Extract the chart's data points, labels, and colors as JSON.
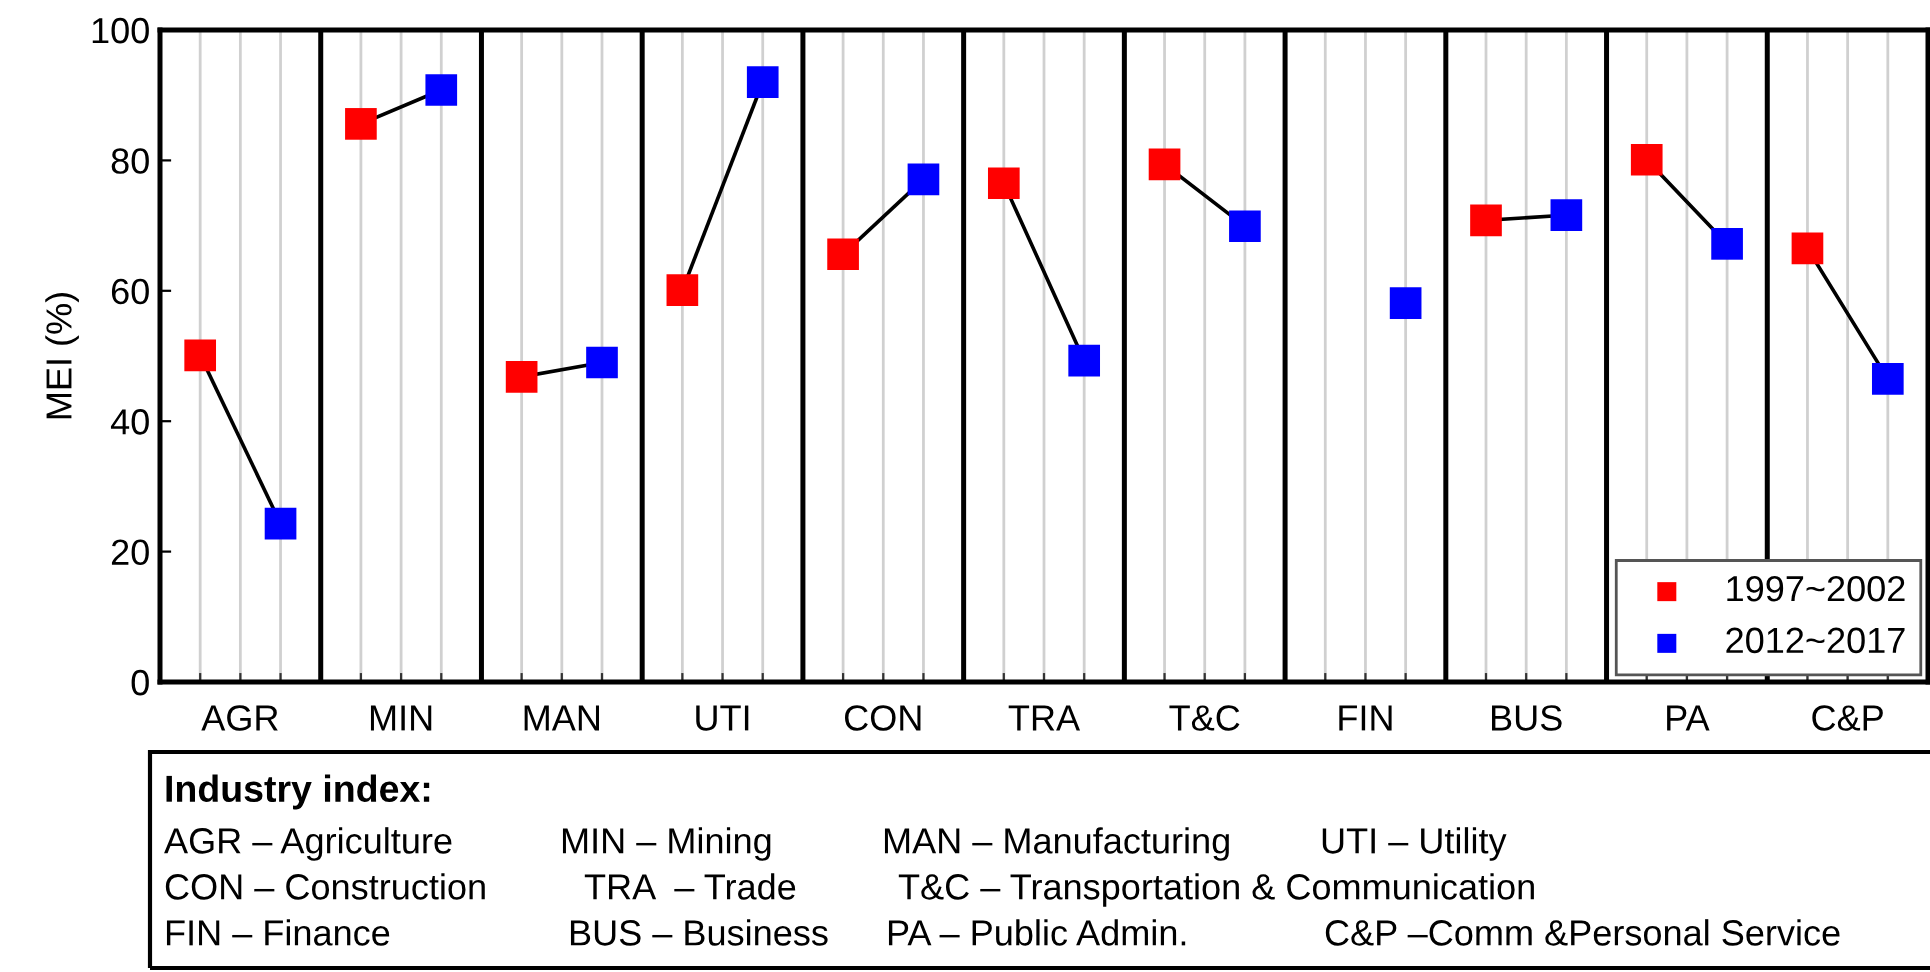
{
  "chart_data": {
    "type": "scatter",
    "ylabel": "MEI (%)",
    "categories": [
      "AGR",
      "MIN",
      "MAN",
      "UTI",
      "CON",
      "TRA",
      "T&C",
      "FIN",
      "BUS",
      "PA",
      "C&P"
    ],
    "series": [
      {
        "name": "1997~2002",
        "color": "#ff0000",
        "values": [
          50.1,
          85.6,
          46.8,
          60.1,
          65.6,
          76.5,
          79.4,
          null,
          70.8,
          80.1,
          66.5
        ]
      },
      {
        "name": "2012~2017",
        "color": "#0000ff",
        "values": [
          24.3,
          90.8,
          49.0,
          92.0,
          77.1,
          49.3,
          69.9,
          58.1,
          71.6,
          67.2,
          46.5
        ]
      }
    ],
    "ylim": [
      0,
      100
    ],
    "yticks": [
      0,
      20,
      40,
      60,
      80,
      100
    ],
    "grid": "x",
    "legend": "bottom right",
    "marker": "square",
    "annotations": [
      "Industry index:",
      "AGR – Agriculture",
      "MIN – Mining",
      "MAN – Manufacturing",
      "UTI – Utility",
      "CON – Construction",
      "TRA  – Trade",
      "T&C – Transportation & Communication",
      "FIN – Finance",
      "BUS – Business",
      "PA – Public Admin.",
      "C&P –Comm &Personal Service"
    ]
  }
}
